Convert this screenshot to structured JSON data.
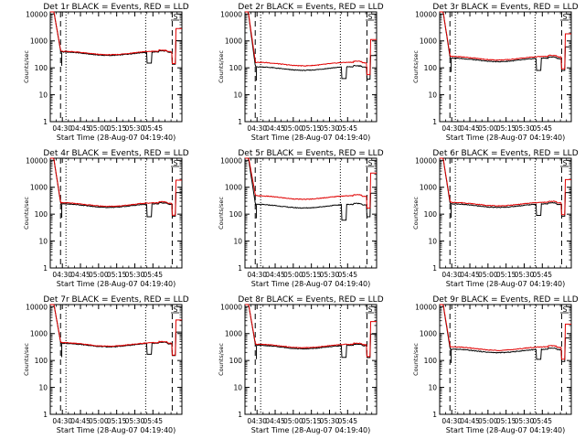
{
  "figure": {
    "title_template": "Det {n}r BLACK = Events, RED = LLD",
    "colors": {
      "events": "#000000",
      "lld": "#e00000",
      "background": "#ffffff",
      "axes": "#000000"
    }
  },
  "chart_data": [
    {
      "type": "line",
      "title": "Det 1r BLACK = Events, RED = LLD",
      "xlabel": "Start Time (28-Aug-07 04:19:40)",
      "ylabel": "Counts/sec",
      "x_ticks": [
        "04:30",
        "04:45",
        "05:00",
        "05:15",
        "05:30",
        "05:45"
      ],
      "y_ticks": [
        "1",
        "10",
        "100",
        "1000",
        "10000"
      ],
      "xlim_minutes_after_04_20": [
        0,
        109
      ],
      "ylim": [
        1,
        12000
      ],
      "y_scale": "log",
      "marker": "S",
      "events_level": 340,
      "lld_level": 360,
      "saa_dip_events": 150
    },
    {
      "type": "line",
      "title": "Det 2r BLACK = Events, RED = LLD",
      "xlabel": "Start Time (28-Aug-07 04:19:40)",
      "ylabel": "Counts/sec",
      "x_ticks": [
        "04:30",
        "04:45",
        "05:00",
        "05:15",
        "05:30",
        "05:45"
      ],
      "y_ticks": [
        "1",
        "10",
        "100",
        "1000",
        "10000"
      ],
      "xlim_minutes_after_04_20": [
        0,
        109
      ],
      "ylim": [
        1,
        12000
      ],
      "y_scale": "log",
      "marker": "S",
      "events_level": 95,
      "lld_level": 140,
      "saa_dip_events": 40
    },
    {
      "type": "line",
      "title": "Det 3r BLACK = Events, RED = LLD",
      "xlabel": "Start Time (28-Aug-07 04:19:40)",
      "ylabel": "Counts/sec",
      "x_ticks": [
        "04:30",
        "04:45",
        "05:00",
        "05:15",
        "05:30",
        "05:45"
      ],
      "y_ticks": [
        "1",
        "10",
        "100",
        "1000",
        "10000"
      ],
      "xlim_minutes_after_04_20": [
        0,
        109
      ],
      "ylim": [
        1,
        12000
      ],
      "y_scale": "log",
      "marker": "S",
      "events_level": 200,
      "lld_level": 230,
      "saa_dip_events": 80
    },
    {
      "type": "line",
      "title": "Det 4r BLACK = Events, RED = LLD",
      "xlabel": "Start Time (28-Aug-07 04:19:40)",
      "ylabel": "Counts/sec",
      "x_ticks": [
        "04:30",
        "04:45",
        "05:00",
        "05:15",
        "05:30",
        "05:45"
      ],
      "y_ticks": [
        "1",
        "10",
        "100",
        "1000",
        "10000"
      ],
      "xlim_minutes_after_04_20": [
        0,
        109
      ],
      "ylim": [
        1,
        12000
      ],
      "y_scale": "log",
      "marker": "S",
      "events_level": 210,
      "lld_level": 230,
      "saa_dip_events": 80
    },
    {
      "type": "line",
      "title": "Det 5r BLACK = Events, RED = LLD",
      "xlabel": "Start Time (28-Aug-07 04:19:40)",
      "ylabel": "Counts/sec",
      "x_ticks": [
        "04:30",
        "04:45",
        "05:00",
        "05:15",
        "05:30",
        "05:45"
      ],
      "y_ticks": [
        "1",
        "10",
        "100",
        "1000",
        "10000"
      ],
      "xlim_minutes_after_04_20": [
        0,
        109
      ],
      "ylim": [
        1,
        12000
      ],
      "y_scale": "log",
      "marker": "S",
      "events_level": 200,
      "lld_level": 420,
      "saa_dip_events": 60
    },
    {
      "type": "line",
      "title": "Det 6r BLACK = Events, RED = LLD",
      "xlabel": "Start Time (28-Aug-07 04:19:40)",
      "ylabel": "Counts/sec",
      "x_ticks": [
        "04:30",
        "04:45",
        "05:00",
        "05:15",
        "05:30",
        "05:45"
      ],
      "y_ticks": [
        "1",
        "10",
        "100",
        "1000",
        "10000"
      ],
      "xlim_minutes_after_04_20": [
        0,
        109
      ],
      "ylim": [
        1,
        12000
      ],
      "y_scale": "log",
      "marker": "S",
      "events_level": 210,
      "lld_level": 240,
      "saa_dip_events": 90
    },
    {
      "type": "line",
      "title": "Det 7r BLACK = Events, RED = LLD",
      "xlabel": "Start Time (28-Aug-07 04:19:40)",
      "ylabel": "Counts/sec",
      "x_ticks": [
        "04:30",
        "04:45",
        "05:00",
        "05:15",
        "05:30",
        "05:45"
      ],
      "y_ticks": [
        "1",
        "10",
        "100",
        "1000",
        "10000"
      ],
      "xlim_minutes_after_04_20": [
        0,
        109
      ],
      "ylim": [
        1,
        12000
      ],
      "y_scale": "log",
      "marker": "S",
      "events_level": 380,
      "lld_level": 400,
      "saa_dip_events": 170
    },
    {
      "type": "line",
      "title": "Det 8r BLACK = Events, RED = LLD",
      "xlabel": "Start Time (28-Aug-07 04:19:40)",
      "ylabel": "Counts/sec",
      "x_ticks": [
        "04:30",
        "04:45",
        "05:00",
        "05:15",
        "05:30",
        "05:45"
      ],
      "y_ticks": [
        "1",
        "10",
        "100",
        "1000",
        "10000"
      ],
      "xlim_minutes_after_04_20": [
        0,
        109
      ],
      "ylim": [
        1,
        12000
      ],
      "y_scale": "log",
      "marker": "S",
      "events_level": 320,
      "lld_level": 350,
      "saa_dip_events": 130
    },
    {
      "type": "line",
      "title": "Det 9r BLACK = Events, RED = LLD",
      "xlabel": "Start Time (28-Aug-07 04:19:40)",
      "ylabel": "Counts/sec",
      "x_ticks": [
        "04:30",
        "04:45",
        "05:00",
        "05:15",
        "05:30",
        "05:45"
      ],
      "y_ticks": [
        "1",
        "10",
        "100",
        "1000",
        "10000"
      ],
      "xlim_minutes_after_04_20": [
        0,
        109
      ],
      "ylim": [
        1,
        12000
      ],
      "y_scale": "log",
      "marker": "S",
      "events_level": 230,
      "lld_level": 280,
      "saa_dip_events": 110
    }
  ]
}
